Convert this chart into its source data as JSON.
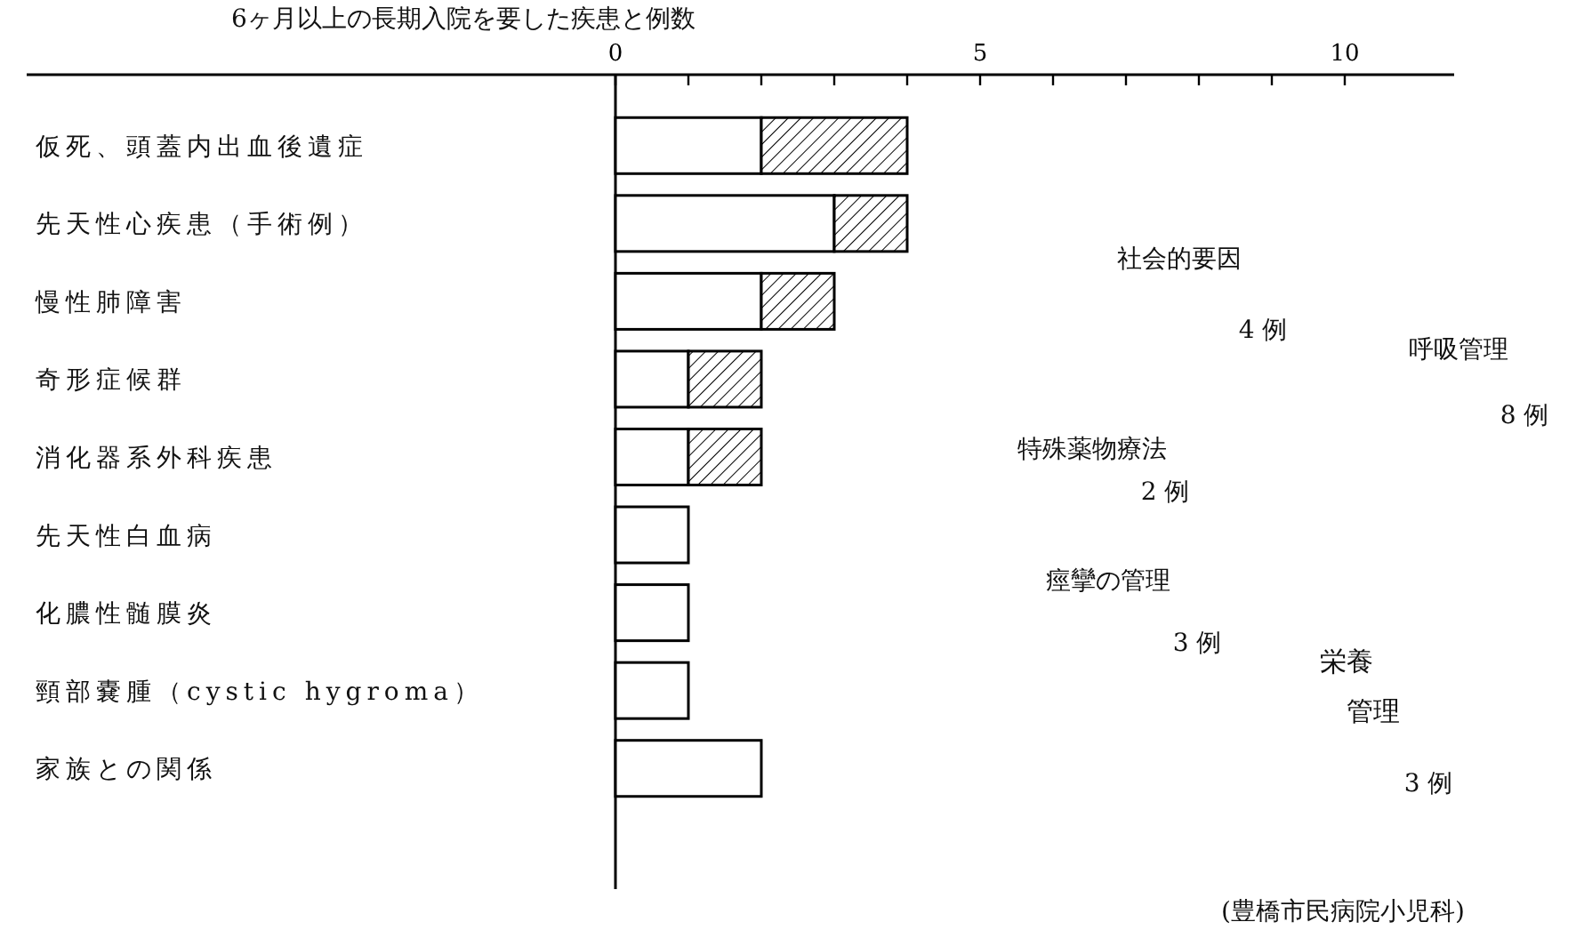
{
  "chart_data": {
    "type": "bar",
    "orientation": "horizontal",
    "stacked": true,
    "title": "6ヶ月以上の長期入院を要した疾患と例数",
    "categories": [
      "仮死、頭蓋内出血後遺症",
      "先天性心疾患（手術例）",
      "慢性肺障害",
      "奇形症候群",
      "消化器系外科疾患",
      "先天性白血病",
      "化膿性髄膜炎",
      "頸部嚢腫（cystic hygroma）",
      "家族との関係"
    ],
    "series": [
      {
        "color": "#ffffff",
        "values": [
          2,
          3,
          2,
          1,
          1,
          1,
          1,
          1,
          2
        ]
      },
      {
        "color": "#000000",
        "values": [
          2,
          1,
          1,
          1,
          1,
          null,
          null,
          null,
          null
        ]
      }
    ],
    "xlim": [
      0,
      11.5
    ],
    "xticks": [
      0,
      {
        "value": 1,
        "label": null
      },
      {
        "value": 2,
        "label": null
      },
      {
        "value": 3,
        "label": null
      },
      {
        "value": 4,
        "label": null
      },
      5,
      {
        "value": 6,
        "label": null
      },
      {
        "value": 7,
        "label": null
      },
      {
        "value": 8,
        "label": null
      },
      {
        "value": 9,
        "label": null
      },
      10
    ],
    "annotations": [
      "社会的要因",
      "4 例",
      "呼吸管理",
      "8 例",
      "特殊薬物療法",
      "2 例",
      "痙攣の管理",
      "3 例",
      "栄養",
      "管理",
      "3 例",
      "(豊橋市民病院小児科)"
    ]
  }
}
